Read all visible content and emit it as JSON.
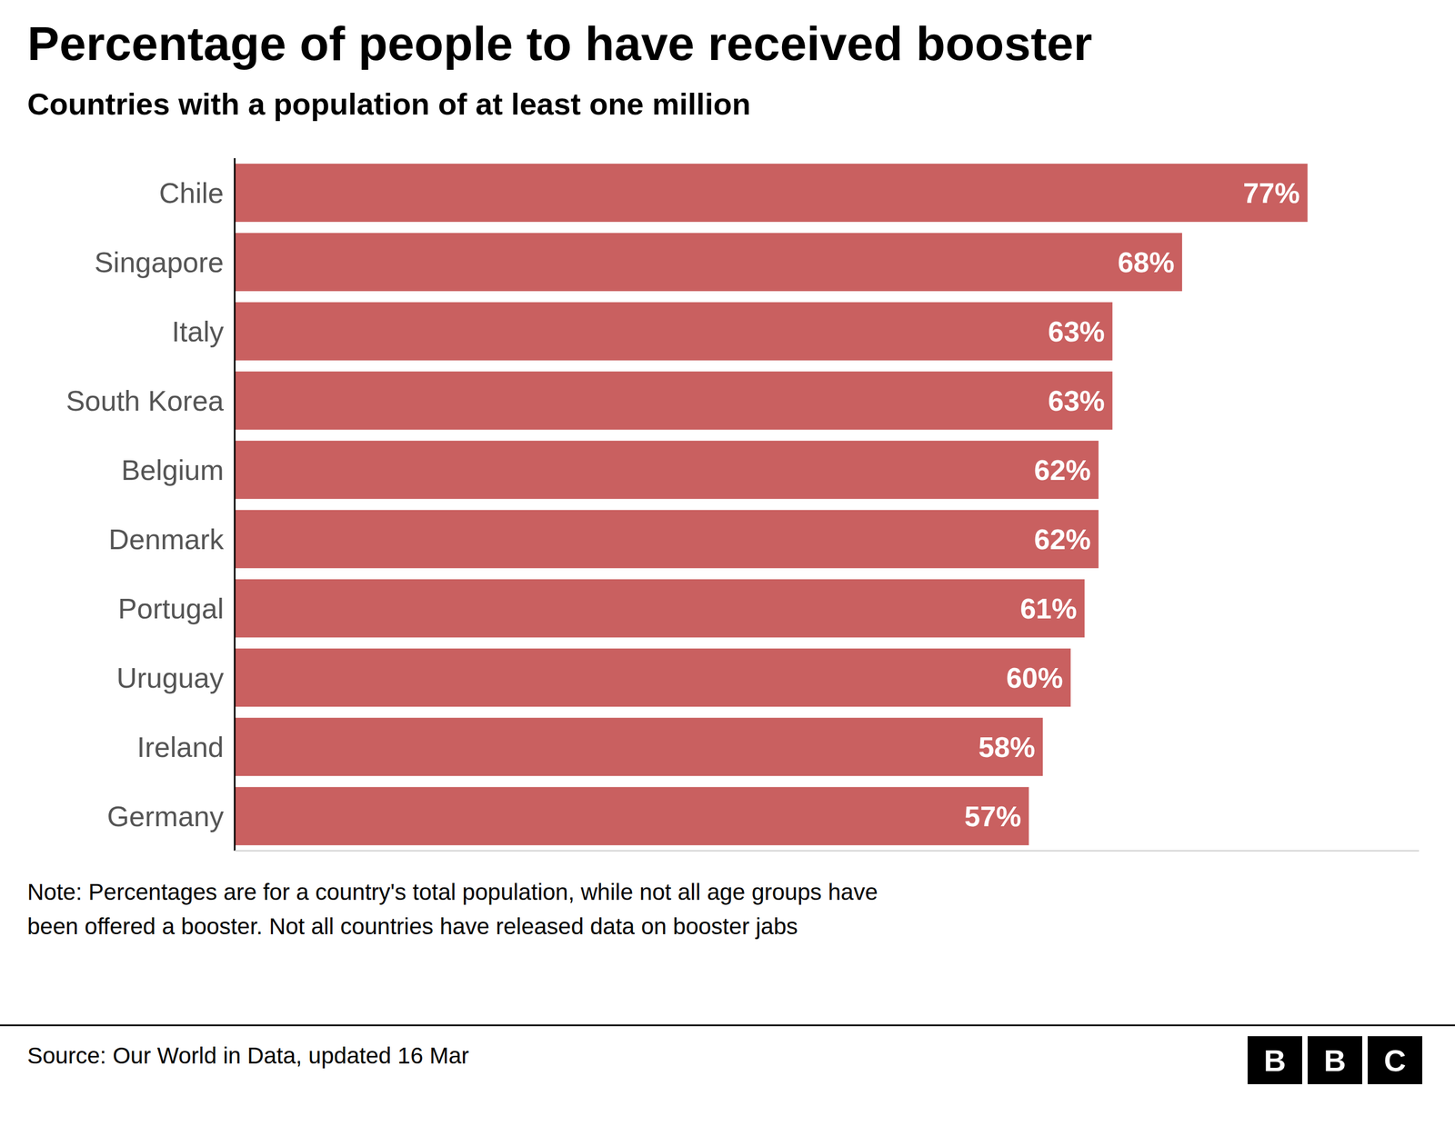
{
  "chart_data": {
    "type": "bar",
    "orientation": "horizontal",
    "title": "Percentage of people to have received booster",
    "subtitle": "Countries with a population of at least one million",
    "categories": [
      "Chile",
      "Singapore",
      "Italy",
      "South Korea",
      "Belgium",
      "Denmark",
      "Portugal",
      "Uruguay",
      "Ireland",
      "Germany"
    ],
    "values": [
      77,
      68,
      63,
      63,
      62,
      62,
      61,
      60,
      58,
      57
    ],
    "value_labels": [
      "77%",
      "68%",
      "63%",
      "63%",
      "62%",
      "62%",
      "61%",
      "60%",
      "58%",
      "57%"
    ],
    "color": "#c96060",
    "xlim": [
      0,
      85
    ],
    "data_labels": true,
    "tick_labels": "y",
    "grid": false,
    "annotations": [
      "Note: Percentages are for a country's total population, while not all age groups have\nbeen offered a booster. Not all countries have released data on booster jabs",
      "Source: Our World in Data, updated 16 Mar"
    ],
    "logo": [
      "B",
      "B",
      "C"
    ]
  }
}
